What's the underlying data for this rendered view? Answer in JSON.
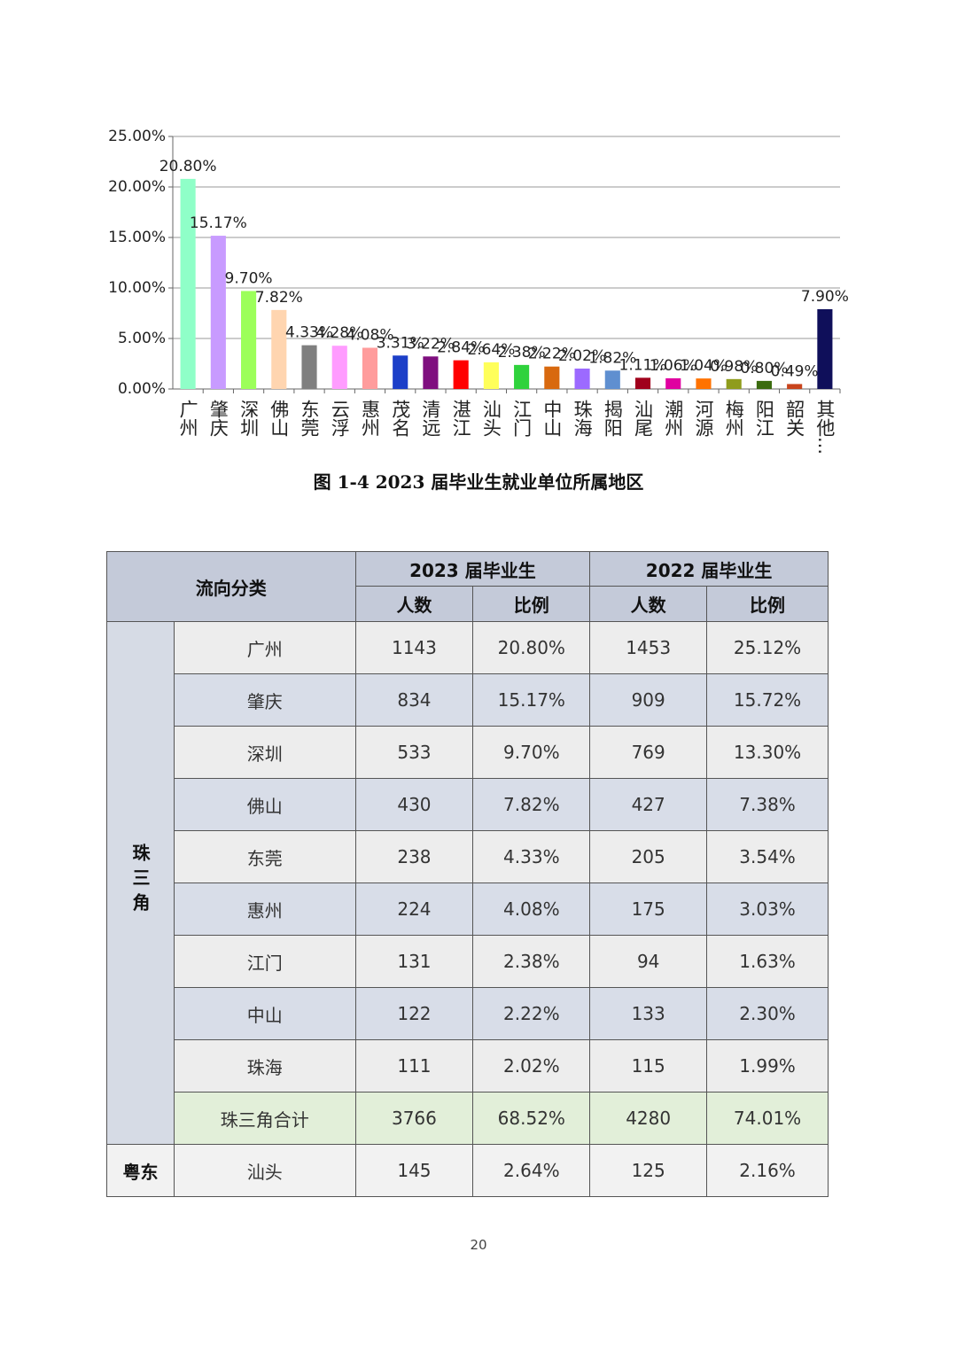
{
  "chart_data": {
    "type": "bar",
    "categories": [
      "广州",
      "肇庆",
      "深圳",
      "佛山",
      "东莞",
      "云浮",
      "惠州",
      "茂名",
      "清远",
      "湛江",
      "汕头",
      "江门",
      "中山",
      "珠海",
      "揭阳",
      "汕尾",
      "潮州",
      "河源",
      "梅州",
      "阳江",
      "韶关",
      "其他..."
    ],
    "values": [
      20.8,
      15.17,
      9.7,
      7.82,
      4.33,
      4.28,
      4.08,
      3.31,
      3.22,
      2.84,
      2.64,
      2.38,
      2.22,
      2.02,
      1.82,
      1.11,
      1.06,
      1.04,
      0.98,
      0.8,
      0.49,
      7.9
    ],
    "value_labels": [
      "20.80%",
      "15.17%",
      "9.70%",
      "7.82%",
      "4.33%",
      "4.28%",
      "4.08%",
      "3.31%",
      "3.22%",
      "2.84%",
      "2.64%",
      "2.38%",
      "2.22%",
      "2.02%",
      "1.82%",
      "1.11%",
      "1.06%",
      "1.04%",
      "0.98%",
      "0.80%",
      "0.49%",
      "7.90%"
    ],
    "colors": [
      "#8fffc8",
      "#c89bff",
      "#9cff5a",
      "#ffd5b0",
      "#7f7f7f",
      "#ff9cff",
      "#ff9c9c",
      "#1c3fc8",
      "#7f0f7f",
      "#ff0000",
      "#ffff5a",
      "#2fd23c",
      "#d8690f",
      "#9c6aff",
      "#5f8fd0",
      "#a0001c",
      "#e000a0",
      "#ff7200",
      "#8f9c1c",
      "#3b6b0f",
      "#c8441c",
      "#0f0f5a"
    ],
    "ylim": [
      0,
      25
    ],
    "yticks": [
      {
        "value": 0,
        "label": "0.00%"
      },
      {
        "value": 5,
        "label": "5.00%"
      },
      {
        "value": 10,
        "label": "10.00%"
      },
      {
        "value": 15,
        "label": "15.00%"
      },
      {
        "value": 20,
        "label": "20.00%"
      },
      {
        "value": 25,
        "label": "25.00%"
      }
    ],
    "grid": true
  },
  "caption": "图 1-4 2023 届毕业生就业单位所属地区",
  "table": {
    "header": {
      "category": "流向分类",
      "groups": [
        "2023 届毕业生",
        "2022 届毕业生"
      ],
      "subheaders": [
        "人数",
        "比例",
        "人数",
        "比例"
      ]
    },
    "groups": [
      {
        "name": "珠三角",
        "rows": [
          [
            "广州",
            "1143",
            "20.80%",
            "1453",
            "25.12%"
          ],
          [
            "肇庆",
            "834",
            "15.17%",
            "909",
            "15.72%"
          ],
          [
            "深圳",
            "533",
            "9.70%",
            "769",
            "13.30%"
          ],
          [
            "佛山",
            "430",
            "7.82%",
            "427",
            "7.38%"
          ],
          [
            "东莞",
            "238",
            "4.33%",
            "205",
            "3.54%"
          ],
          [
            "惠州",
            "224",
            "4.08%",
            "175",
            "3.03%"
          ],
          [
            "江门",
            "131",
            "2.38%",
            "94",
            "1.63%"
          ],
          [
            "中山",
            "122",
            "2.22%",
            "133",
            "2.30%"
          ],
          [
            "珠海",
            "111",
            "2.02%",
            "115",
            "1.99%"
          ],
          [
            "珠三角合计",
            "3766",
            "68.52%",
            "4280",
            "74.01%"
          ]
        ]
      },
      {
        "name": "粤东",
        "rows": [
          [
            "汕头",
            "145",
            "2.64%",
            "125",
            "2.16%"
          ]
        ]
      }
    ]
  },
  "page_number": "20"
}
